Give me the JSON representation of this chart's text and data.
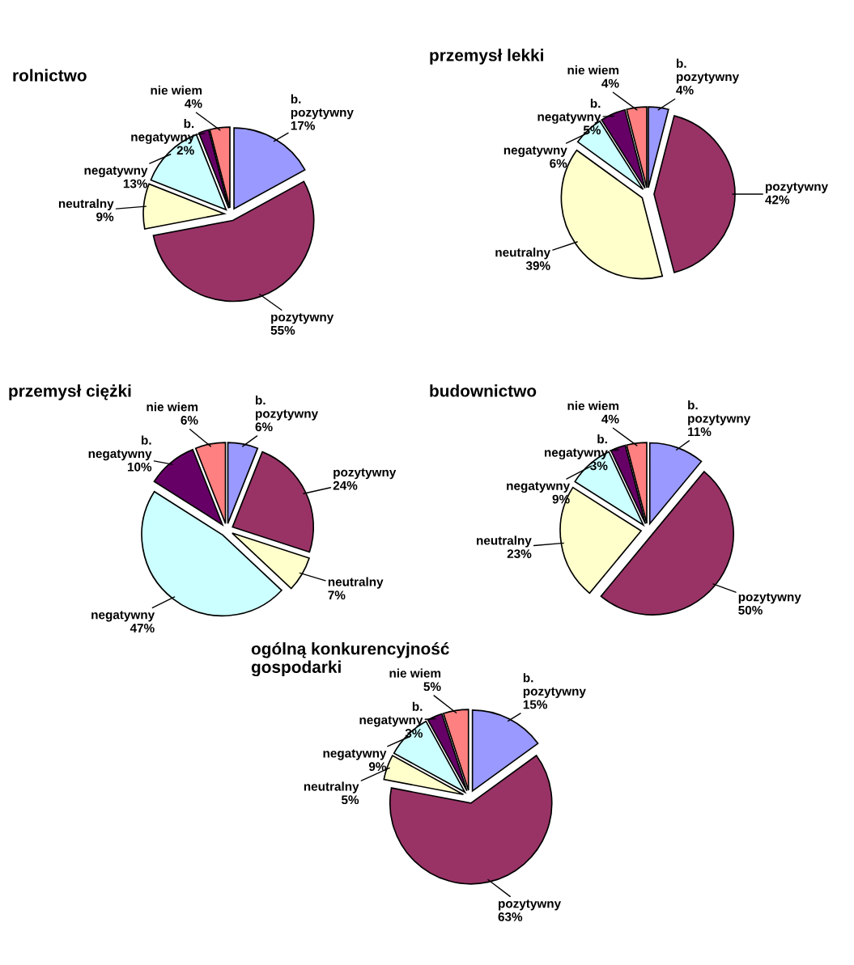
{
  "chart_data": [
    {
      "type": "pie",
      "title": "rolnictwo",
      "categories": [
        "b.\npozytywny",
        "pozytywny",
        "neutralny",
        "negatywny",
        "b.\nnegatywny",
        "nie wiem"
      ],
      "values": [
        17,
        55,
        9,
        13,
        2,
        4
      ],
      "value_labels": [
        "17%",
        "55%",
        "9%",
        "13%",
        "2%",
        "4%"
      ],
      "colors": [
        "#9999ff",
        "#993366",
        "#ffffcc",
        "#ccffff",
        "#660066",
        "#ff8080"
      ]
    },
    {
      "type": "pie",
      "title": "przemysł lekki",
      "categories": [
        "b.\npozytywny",
        "pozytywny",
        "neutralny",
        "negatywny",
        "b.\nnegatywny",
        "nie wiem"
      ],
      "values": [
        4,
        42,
        39,
        6,
        5,
        4
      ],
      "value_labels": [
        "4%",
        "42%",
        "39%",
        "6%",
        "5%",
        "4%"
      ],
      "colors": [
        "#9999ff",
        "#993366",
        "#ffffcc",
        "#ccffff",
        "#660066",
        "#ff8080"
      ]
    },
    {
      "type": "pie",
      "title": "przemysł ciężki",
      "categories": [
        "b.\npozytywny",
        "pozytywny",
        "neutralny",
        "negatywny",
        "b.\nnegatywny",
        "nie wiem"
      ],
      "values": [
        6,
        24,
        7,
        47,
        10,
        6
      ],
      "value_labels": [
        "6%",
        "24%",
        "7%",
        "47%",
        "10%",
        "6%"
      ],
      "colors": [
        "#9999ff",
        "#993366",
        "#ffffcc",
        "#ccffff",
        "#660066",
        "#ff8080"
      ]
    },
    {
      "type": "pie",
      "title": "budownictwo",
      "categories": [
        "b.\npozytywny",
        "pozytywny",
        "neutralny",
        "negatywny",
        "b.\nnegatywny",
        "nie wiem"
      ],
      "values": [
        11,
        50,
        23,
        9,
        3,
        4
      ],
      "value_labels": [
        "11%",
        "50%",
        "23%",
        "9%",
        "3%",
        "4%"
      ],
      "colors": [
        "#9999ff",
        "#993366",
        "#ffffcc",
        "#ccffff",
        "#660066",
        "#ff8080"
      ]
    },
    {
      "type": "pie",
      "title": "ogólną konkurencyjność\ngospodarki",
      "categories": [
        "b.\npozytywny",
        "pozytywny",
        "neutralny",
        "negatywny",
        "b.\nnegatywny",
        "nie wiem"
      ],
      "values": [
        15,
        63,
        5,
        9,
        3,
        5
      ],
      "value_labels": [
        "15%",
        "63%",
        "5%",
        "9%",
        "3%",
        "5%"
      ],
      "colors": [
        "#9999ff",
        "#993366",
        "#ffffcc",
        "#ccffff",
        "#660066",
        "#ff8080"
      ]
    }
  ]
}
